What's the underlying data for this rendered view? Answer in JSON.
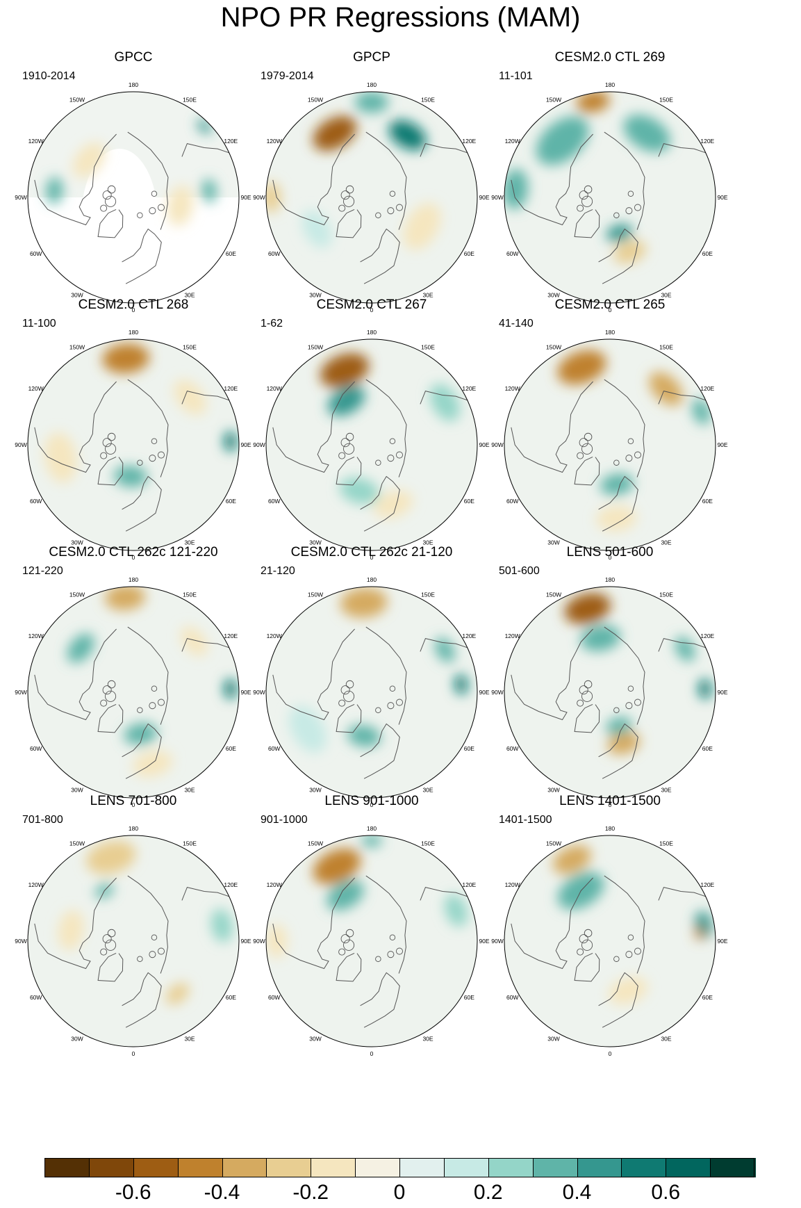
{
  "title": "NPO PR Regressions (MAM)",
  "axis_labels": [
    "180",
    "150E",
    "120E",
    "90E",
    "60E",
    "30E",
    "0",
    "30W",
    "60W",
    "90W",
    "120W",
    "150W"
  ],
  "panels": [
    {
      "title": "GPCC",
      "years": "1910-2014",
      "masked": true,
      "anomalies": [
        {
          "lon": 135,
          "r": 0.95,
          "v": 0.4,
          "s": 0.05
        },
        {
          "lon": 95,
          "r": 0.72,
          "v": 0.3,
          "s": 0.07
        },
        {
          "lon": -95,
          "r": 0.75,
          "v": 0.3,
          "s": 0.08
        },
        {
          "lon": -130,
          "r": 0.55,
          "v": -0.15,
          "s": 0.12
        },
        {
          "lon": 80,
          "r": 0.45,
          "v": -0.12,
          "s": 0.12
        }
      ]
    },
    {
      "title": "GPCP",
      "years": "1979-2014",
      "masked": false,
      "anomalies": [
        {
          "lon": -150,
          "r": 0.7,
          "v": -0.55,
          "s": 0.14
        },
        {
          "lon": 150,
          "r": 0.68,
          "v": 0.55,
          "s": 0.12
        },
        {
          "lon": 180,
          "r": 0.9,
          "v": 0.3,
          "s": 0.1
        },
        {
          "lon": -90,
          "r": 0.95,
          "v": -0.3,
          "s": 0.09
        },
        {
          "lon": -60,
          "r": 0.6,
          "v": 0.15,
          "s": 0.12
        },
        {
          "lon": 60,
          "r": 0.55,
          "v": -0.15,
          "s": 0.15
        }
      ]
    },
    {
      "title": "CESM2.0 CTL 269",
      "years": "11-101",
      "masked": false,
      "anomalies": [
        {
          "lon": -170,
          "r": 0.92,
          "v": -0.45,
          "s": 0.1
        },
        {
          "lon": -140,
          "r": 0.7,
          "v": 0.3,
          "s": 0.18
        },
        {
          "lon": 150,
          "r": 0.7,
          "v": 0.3,
          "s": 0.15
        },
        {
          "lon": -95,
          "r": 0.9,
          "v": 0.3,
          "s": 0.12
        },
        {
          "lon": 20,
          "r": 0.55,
          "v": -0.3,
          "s": 0.1
        },
        {
          "lon": 15,
          "r": 0.35,
          "v": 0.4,
          "s": 0.08
        }
      ]
    },
    {
      "title": "CESM2.0 CTL 268",
      "years": "11-100",
      "masked": false,
      "anomalies": [
        {
          "lon": -175,
          "r": 0.82,
          "v": -0.45,
          "s": 0.14
        },
        {
          "lon": 130,
          "r": 0.7,
          "v": -0.2,
          "s": 0.12
        },
        {
          "lon": 92,
          "r": 0.92,
          "v": 0.6,
          "s": 0.06
        },
        {
          "lon": -5,
          "r": 0.3,
          "v": 0.3,
          "s": 0.1
        },
        {
          "lon": -80,
          "r": 0.7,
          "v": -0.15,
          "s": 0.15
        }
      ]
    },
    {
      "title": "CESM2.0 CTL 267",
      "years": "1-62",
      "masked": false,
      "anomalies": [
        {
          "lon": -160,
          "r": 0.75,
          "v": -0.6,
          "s": 0.15
        },
        {
          "lon": -150,
          "r": 0.48,
          "v": 0.4,
          "s": 0.12
        },
        {
          "lon": 120,
          "r": 0.8,
          "v": 0.2,
          "s": 0.12
        },
        {
          "lon": -15,
          "r": 0.45,
          "v": 0.25,
          "s": 0.12
        },
        {
          "lon": 20,
          "r": 0.6,
          "v": -0.15,
          "s": 0.12
        }
      ]
    },
    {
      "title": "CESM2.0 CTL 265",
      "years": "41-140",
      "masked": false,
      "anomalies": [
        {
          "lon": -160,
          "r": 0.78,
          "v": -0.5,
          "s": 0.15
        },
        {
          "lon": 135,
          "r": 0.75,
          "v": -0.35,
          "s": 0.12
        },
        {
          "lon": 110,
          "r": 0.92,
          "v": 0.35,
          "s": 0.08
        },
        {
          "lon": 10,
          "r": 0.38,
          "v": 0.3,
          "s": 0.1
        },
        {
          "lon": 5,
          "r": 0.7,
          "v": -0.2,
          "s": 0.12
        }
      ]
    },
    {
      "title": "CESM2.0 CTL 262c 121-220",
      "years": "121-220",
      "masked": false,
      "anomalies": [
        {
          "lon": -175,
          "r": 0.9,
          "v": -0.35,
          "s": 0.12
        },
        {
          "lon": -130,
          "r": 0.65,
          "v": 0.3,
          "s": 0.1
        },
        {
          "lon": 92,
          "r": 0.92,
          "v": 0.6,
          "s": 0.06
        },
        {
          "lon": 130,
          "r": 0.75,
          "v": -0.2,
          "s": 0.1
        },
        {
          "lon": 10,
          "r": 0.4,
          "v": 0.3,
          "s": 0.1
        },
        {
          "lon": 15,
          "r": 0.7,
          "v": -0.2,
          "s": 0.12
        }
      ]
    },
    {
      "title": "CESM2.0 CTL 262c 21-120",
      "years": "21-120",
      "masked": false,
      "anomalies": [
        {
          "lon": -175,
          "r": 0.85,
          "v": -0.4,
          "s": 0.14
        },
        {
          "lon": 120,
          "r": 0.8,
          "v": 0.35,
          "s": 0.08
        },
        {
          "lon": 95,
          "r": 0.85,
          "v": 0.5,
          "s": 0.06
        },
        {
          "lon": -10,
          "r": 0.42,
          "v": 0.3,
          "s": 0.1
        },
        {
          "lon": -60,
          "r": 0.7,
          "v": 0.15,
          "s": 0.15
        }
      ]
    },
    {
      "title": "LENS 501-600",
      "years": "501-600",
      "masked": false,
      "anomalies": [
        {
          "lon": -165,
          "r": 0.82,
          "v": -0.55,
          "s": 0.14
        },
        {
          "lon": -170,
          "r": 0.52,
          "v": 0.35,
          "s": 0.12
        },
        {
          "lon": 92,
          "r": 0.9,
          "v": 0.6,
          "s": 0.06
        },
        {
          "lon": 120,
          "r": 0.82,
          "v": 0.35,
          "s": 0.08
        },
        {
          "lon": 15,
          "r": 0.5,
          "v": -0.35,
          "s": 0.1
        },
        {
          "lon": 15,
          "r": 0.33,
          "v": 0.35,
          "s": 0.08
        }
      ]
    },
    {
      "title": "LENS 701-800",
      "years": "701-800",
      "masked": false,
      "anomalies": [
        {
          "lon": -165,
          "r": 0.82,
          "v": -0.3,
          "s": 0.15
        },
        {
          "lon": -150,
          "r": 0.55,
          "v": 0.35,
          "s": 0.06
        },
        {
          "lon": 100,
          "r": 0.85,
          "v": 0.25,
          "s": 0.1
        },
        {
          "lon": -100,
          "r": 0.6,
          "v": -0.2,
          "s": 0.12
        },
        {
          "lon": 40,
          "r": 0.65,
          "v": -0.25,
          "s": 0.08
        }
      ]
    },
    {
      "title": "LENS 901-1000",
      "years": "901-1000",
      "masked": false,
      "anomalies": [
        {
          "lon": -155,
          "r": 0.78,
          "v": -0.45,
          "s": 0.15
        },
        {
          "lon": -150,
          "r": 0.5,
          "v": 0.3,
          "s": 0.12
        },
        {
          "lon": 180,
          "r": 0.95,
          "v": 0.35,
          "s": 0.06
        },
        {
          "lon": 110,
          "r": 0.85,
          "v": 0.25,
          "s": 0.1
        },
        {
          "lon": -90,
          "r": 0.9,
          "v": -0.2,
          "s": 0.1
        }
      ]
    },
    {
      "title": "LENS 1401-1500",
      "years": "1401-1500",
      "masked": false,
      "anomalies": [
        {
          "lon": -155,
          "r": 0.85,
          "v": -0.35,
          "s": 0.12
        },
        {
          "lon": -150,
          "r": 0.55,
          "v": 0.3,
          "s": 0.15
        },
        {
          "lon": 100,
          "r": 0.9,
          "v": 0.4,
          "s": 0.08
        },
        {
          "lon": 95,
          "r": 0.85,
          "v": -0.5,
          "s": 0.04
        },
        {
          "lon": 20,
          "r": 0.5,
          "v": -0.15,
          "s": 0.12
        }
      ]
    }
  ],
  "colorbar": {
    "colors": [
      "#543005",
      "#7f470a",
      "#9e5d13",
      "#bf812d",
      "#d5aa60",
      "#e8ce92",
      "#f5e6bf",
      "#f5f1e3",
      "#e2f0ee",
      "#c7eae5",
      "#94d5c8",
      "#5fb4a8",
      "#35978f",
      "#0f7a72",
      "#01665e",
      "#003c30"
    ],
    "labels": [
      "-0.6",
      "-0.4",
      "-0.2",
      "0",
      "0.2",
      "0.4",
      "0.6"
    ],
    "label_index": [
      2,
      4,
      6,
      8,
      10,
      12,
      14
    ]
  }
}
